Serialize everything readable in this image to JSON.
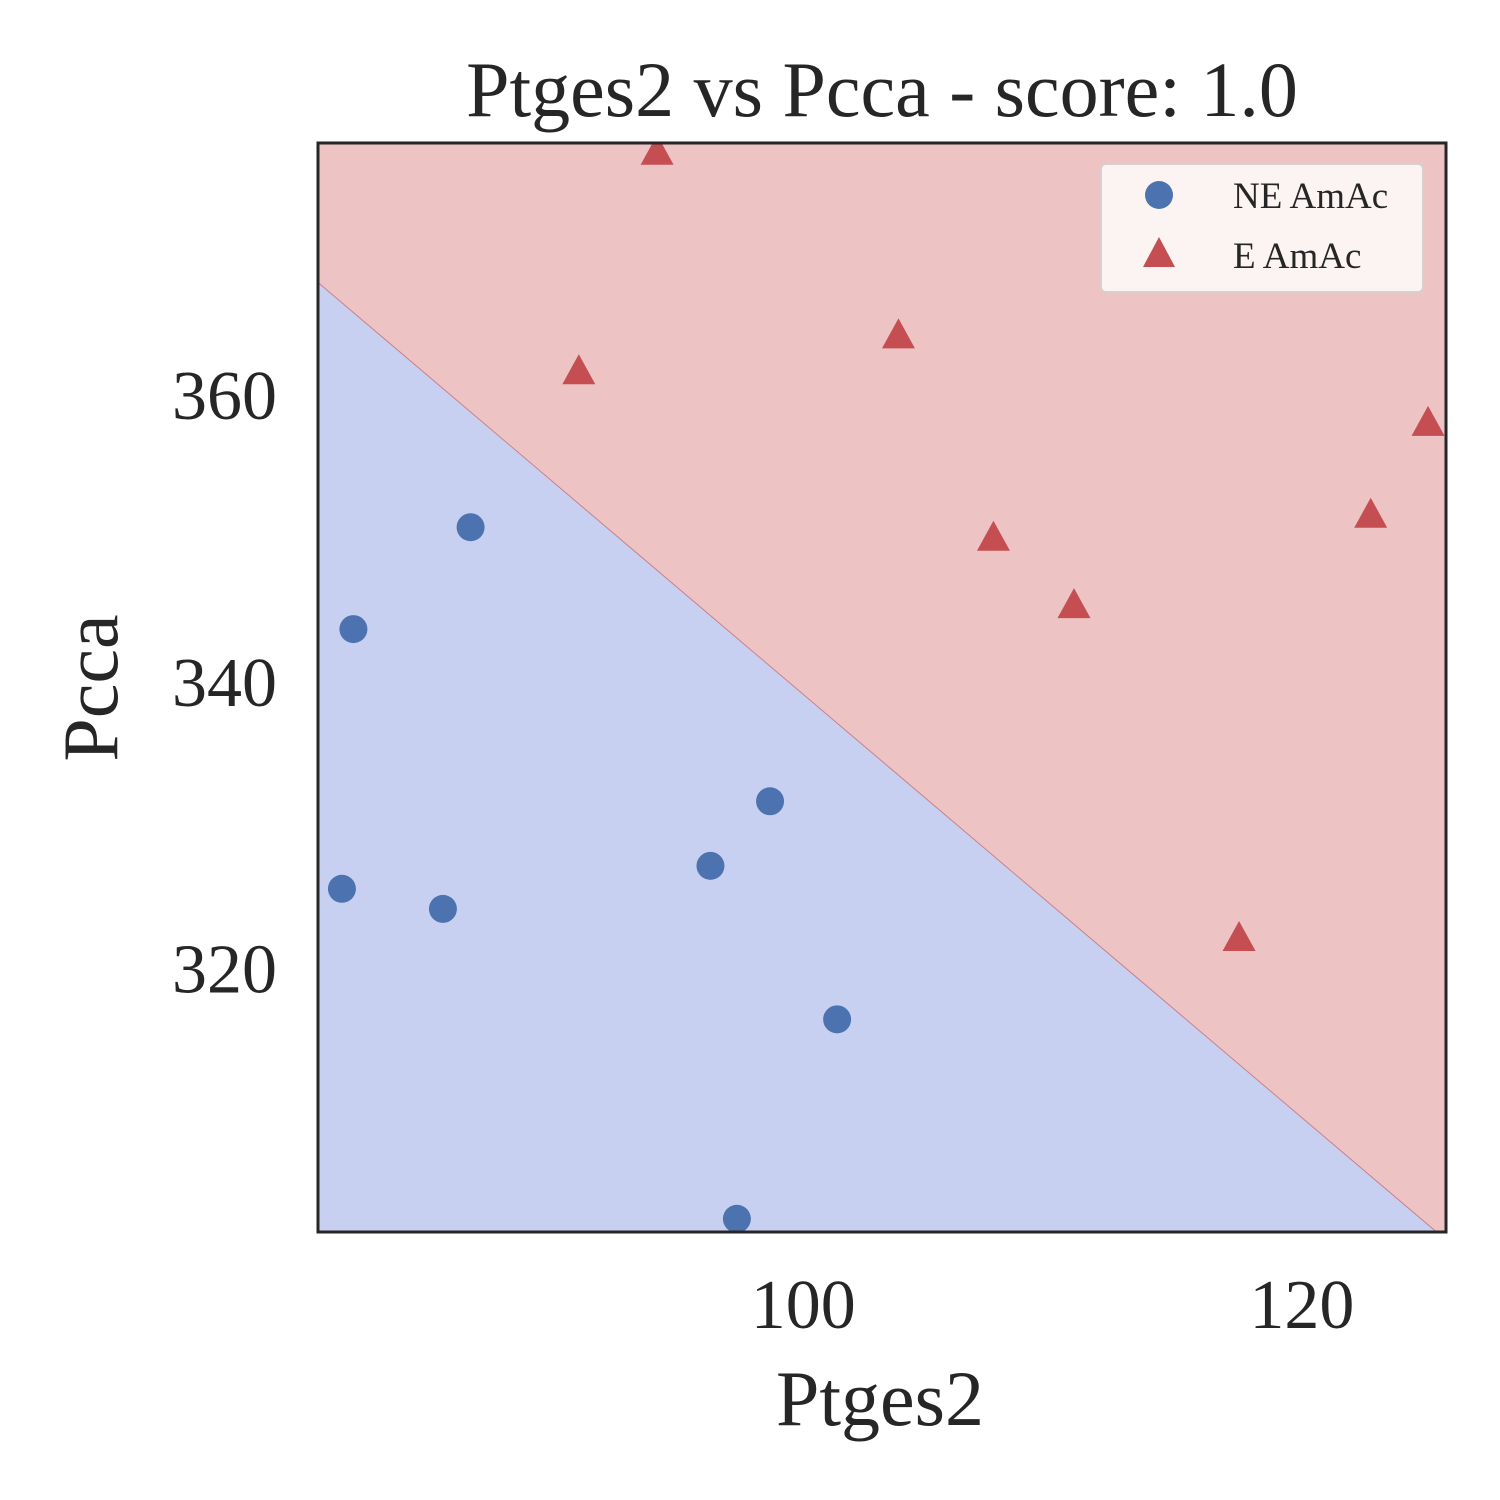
{
  "chart_data": {
    "type": "scatter",
    "title": "Ptges2 vs Pcca - score: 1.0",
    "xlabel": "Ptges2",
    "ylabel": "Pcca",
    "xlim": [
      80.54,
      125.78
    ],
    "ylim": [
      301.58,
      377.48
    ],
    "x_ticks": [
      100,
      120
    ],
    "y_ticks": [
      320,
      340,
      360
    ],
    "grid": false,
    "legend_position": "top-right",
    "decision_boundary": {
      "points": [
        [
          80.54,
          367.76
        ],
        [
          125.4,
          301.58
        ]
      ],
      "region_colors": {
        "NE AmAc": "#c8d0f1",
        "E AmAc": "#edc4c3"
      }
    },
    "series": [
      {
        "name": "NE AmAc",
        "marker": "circle",
        "color": "#4c72b0",
        "points": [
          [
            81.5,
            325.5
          ],
          [
            81.96,
            343.6
          ],
          [
            85.55,
            324.1
          ],
          [
            86.66,
            350.7
          ],
          [
            96.28,
            327.1
          ],
          [
            97.34,
            302.5
          ],
          [
            98.67,
            331.6
          ],
          [
            101.36,
            316.4
          ]
        ]
      },
      {
        "name": "E AmAc",
        "marker": "triangle",
        "color": "#c44e52",
        "points": [
          [
            91.0,
            361.5
          ],
          [
            94.14,
            376.8
          ],
          [
            103.82,
            364.0
          ],
          [
            107.63,
            349.9
          ],
          [
            110.86,
            345.2
          ],
          [
            117.48,
            322.0
          ],
          [
            122.76,
            351.5
          ],
          [
            125.06,
            357.9
          ]
        ]
      }
    ]
  }
}
